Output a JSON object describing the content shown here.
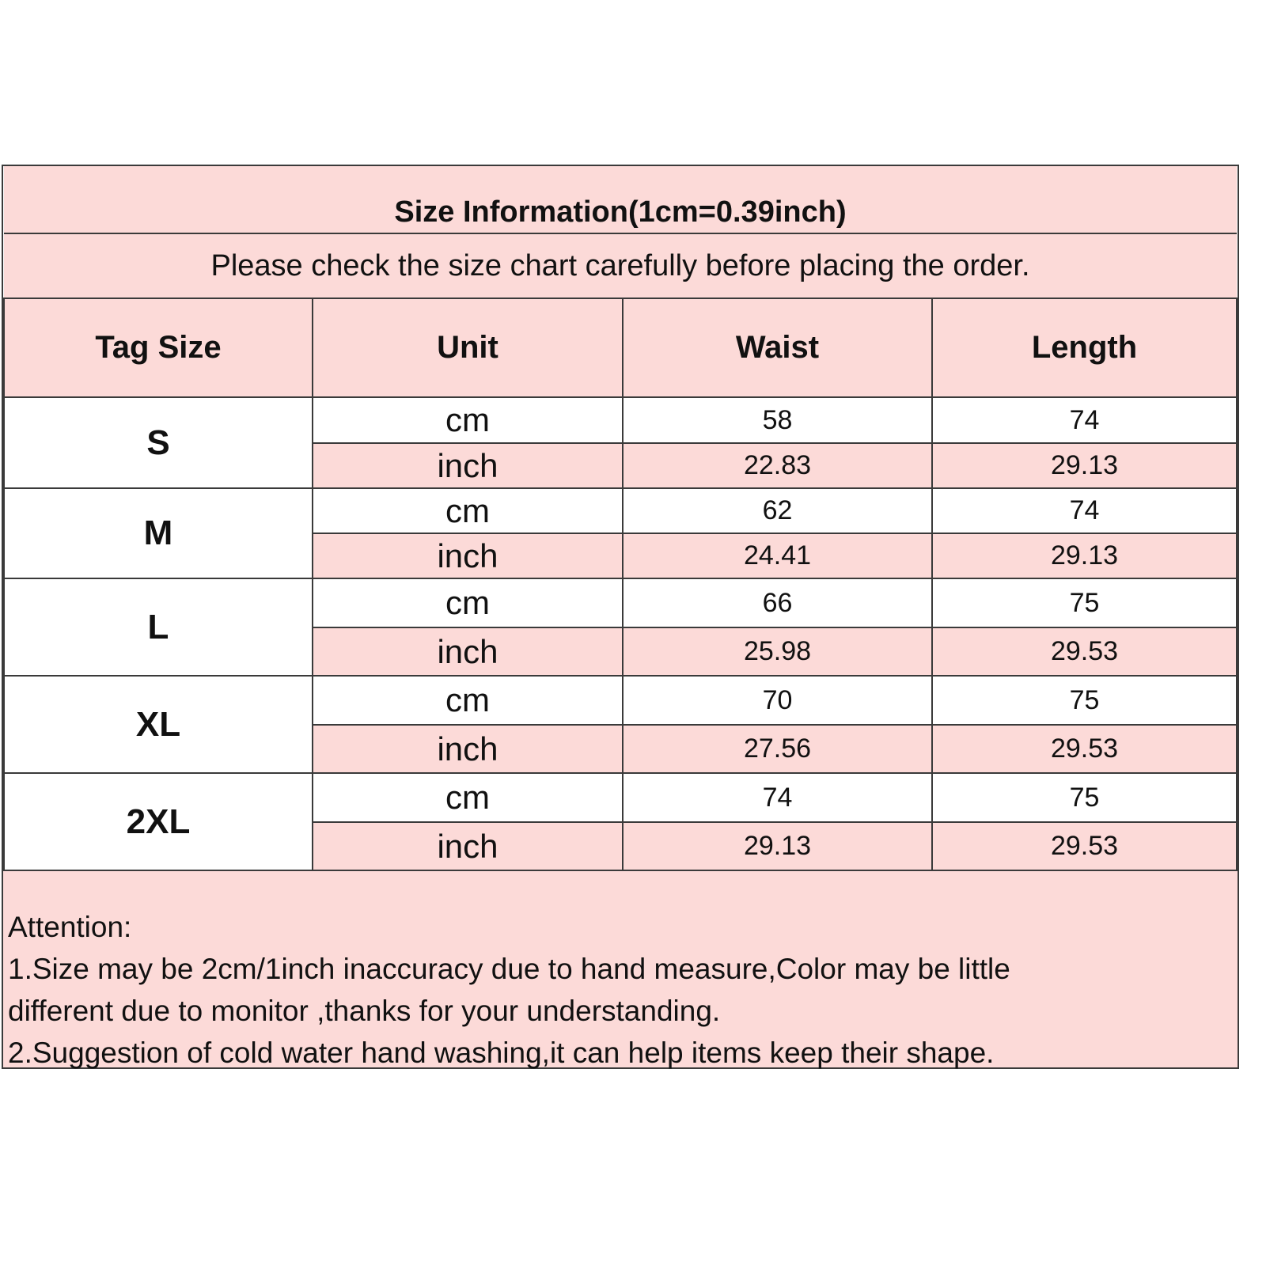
{
  "title": "Size Information(1cm=0.39inch)",
  "subtitle": "Please check the size chart carefully before placing the order.",
  "headers": [
    "Tag Size",
    "Unit",
    "Waist",
    "Length"
  ],
  "rows": [
    {
      "size": "S",
      "cm": {
        "unit": "cm",
        "waist": "58",
        "length": "74"
      },
      "inch": {
        "unit": "inch",
        "waist": "22.83",
        "length": "29.13"
      }
    },
    {
      "size": "M",
      "cm": {
        "unit": "cm",
        "waist": "62",
        "length": "74"
      },
      "inch": {
        "unit": "inch",
        "waist": "24.41",
        "length": "29.13"
      }
    },
    {
      "size": "L",
      "cm": {
        "unit": "cm",
        "waist": "66",
        "length": "75"
      },
      "inch": {
        "unit": "inch",
        "waist": "25.98",
        "length": "29.53"
      }
    },
    {
      "size": "XL",
      "cm": {
        "unit": "cm",
        "waist": "70",
        "length": "75"
      },
      "inch": {
        "unit": "inch",
        "waist": "27.56",
        "length": "29.53"
      }
    },
    {
      "size": "2XL",
      "cm": {
        "unit": "cm",
        "waist": "74",
        "length": "75"
      },
      "inch": {
        "unit": "inch",
        "waist": "29.13",
        "length": "29.53"
      }
    }
  ],
  "notes": [
    "Attention:",
    "1.Size may be 2cm/1inch inaccuracy due to hand measure,Color may be little",
    "different due to monitor ,thanks for your understanding.",
    "2.Suggestion of cold water hand washing,it can help items keep their shape."
  ],
  "colors": {
    "pink": "#fcdad8",
    "border": "#3a3a3a"
  }
}
